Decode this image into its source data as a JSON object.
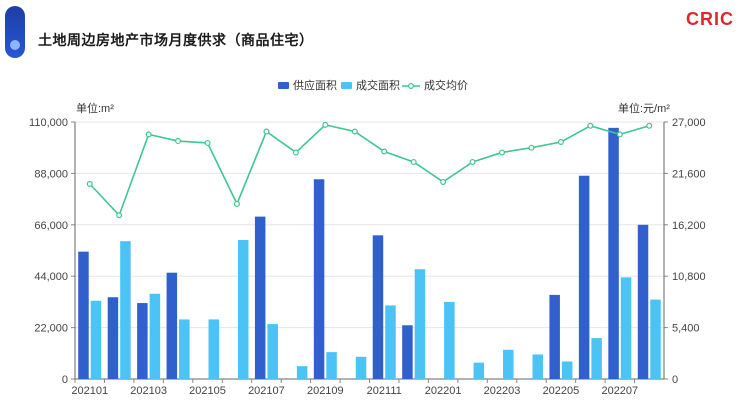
{
  "header": {
    "title": "土地周边房地产市场月度供求（商品住宅）",
    "logo_text": "CRIC"
  },
  "colors": {
    "supply": "#3060cc",
    "deal": "#4cc3f5",
    "price": "#3ec78e",
    "badge": "#1e44b0",
    "logo": "#e0262f"
  },
  "chart_data": {
    "type": "bar",
    "title": "土地周边房地产市场月度供求（商品住宅）",
    "left_unit": "单位:m²",
    "right_unit": "单位:元/m²",
    "x": [
      "202101",
      "202102",
      "202103",
      "202104",
      "202105",
      "202106",
      "202107",
      "202108",
      "202109",
      "202110",
      "202111",
      "202112",
      "202201",
      "202202",
      "202203",
      "202204",
      "202205",
      "202206",
      "202207",
      "202208"
    ],
    "x_tick_labels": [
      "202101",
      "202103",
      "202105",
      "202107",
      "202109",
      "202111",
      "202201",
      "202203",
      "202205",
      "202207"
    ],
    "ylim_left": [
      0,
      110000
    ],
    "left_ticks": [
      "0",
      "22,000",
      "44,000",
      "66,000",
      "88,000",
      "110,000"
    ],
    "ylim_right": [
      0,
      27000
    ],
    "right_ticks": [
      "0",
      "5,400",
      "10,800",
      "16,200",
      "21,600",
      "27,000"
    ],
    "legend_position": "top-center",
    "series": [
      {
        "name": "供应面积",
        "axis": "left",
        "kind": "bar",
        "values": [
          54500,
          35000,
          32500,
          45500,
          0,
          0,
          69500,
          0,
          85500,
          0,
          61500,
          23000,
          0,
          0,
          0,
          0,
          36000,
          87000,
          107500,
          66000
        ]
      },
      {
        "name": "成交面积",
        "axis": "left",
        "kind": "bar",
        "values": [
          33500,
          59000,
          36500,
          25500,
          25500,
          59500,
          23500,
          5500,
          11500,
          9500,
          31500,
          47000,
          33000,
          7000,
          12500,
          10500,
          7500,
          17500,
          43500,
          34000
        ]
      },
      {
        "name": "成交均价",
        "axis": "right",
        "kind": "line",
        "values": [
          20500,
          17200,
          25700,
          25000,
          24800,
          18400,
          26000,
          23800,
          26700,
          26000,
          23900,
          22800,
          20700,
          22800,
          23800,
          24300,
          24900,
          26600,
          25700,
          26600
        ]
      }
    ]
  }
}
